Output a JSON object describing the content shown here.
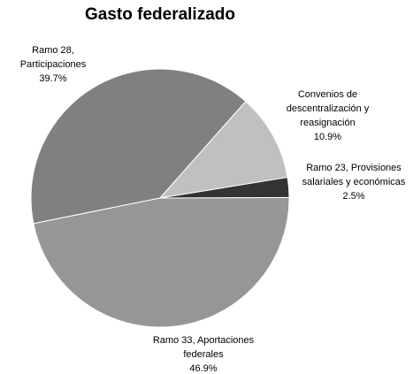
{
  "chart_data": {
    "type": "pie",
    "title": "Gasto federalizado",
    "categories": [
      "Ramo 28, Participaciones",
      "Convenios de descentralización y reasignación",
      "Ramo 23, Provisiones salariales y económicas",
      "Ramo 33, Aportaciones federales"
    ],
    "values": [
      39.7,
      10.9,
      2.5,
      46.9
    ],
    "value_labels": [
      "39.7%",
      "10.9%",
      "2.5%",
      "46.9%"
    ],
    "colors": [
      "#808080",
      "#c0c0c0",
      "#333333",
      "#969696"
    ]
  }
}
